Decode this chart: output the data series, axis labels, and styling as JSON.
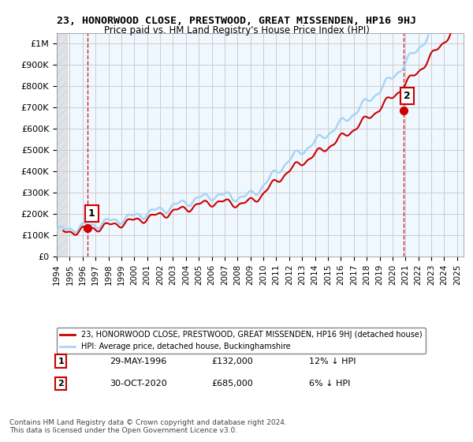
{
  "title": "23, HONORWOOD CLOSE, PRESTWOOD, GREAT MISSENDEN, HP16 9HJ",
  "subtitle": "Price paid vs. HM Land Registry's House Price Index (HPI)",
  "xlim_start": 1994.0,
  "xlim_end": 2025.5,
  "ylim_min": 0,
  "ylim_max": 1050000,
  "yticks": [
    0,
    100000,
    200000,
    300000,
    400000,
    500000,
    600000,
    700000,
    800000,
    900000,
    1000000
  ],
  "ytick_labels": [
    "£0",
    "£100K",
    "£200K",
    "£300K",
    "£400K",
    "£500K",
    "£600K",
    "£700K",
    "£800K",
    "£900K",
    "£1M"
  ],
  "xtick_years": [
    1994,
    1995,
    1996,
    1997,
    1998,
    1999,
    2000,
    2001,
    2002,
    2003,
    2004,
    2005,
    2006,
    2007,
    2008,
    2009,
    2010,
    2011,
    2012,
    2013,
    2014,
    2015,
    2016,
    2017,
    2018,
    2019,
    2020,
    2021,
    2022,
    2023,
    2024,
    2025
  ],
  "sale1_x": 1996.41,
  "sale1_y": 132000,
  "sale1_label": "1",
  "sale1_date": "29-MAY-1996",
  "sale1_price": "£132,000",
  "sale1_hpi": "12% ↓ HPI",
  "sale2_x": 2020.83,
  "sale2_y": 685000,
  "sale2_label": "2",
  "sale2_date": "30-OCT-2020",
  "sale2_price": "£685,000",
  "sale2_hpi": "6% ↓ HPI",
  "hpi_color": "#aad4f5",
  "sold_color": "#cc0000",
  "vline_color": "#cc0000",
  "legend1_text": "23, HONORWOOD CLOSE, PRESTWOOD, GREAT MISSENDEN, HP16 9HJ (detached house)",
  "legend2_text": "HPI: Average price, detached house, Buckinghamshire",
  "footer": "Contains HM Land Registry data © Crown copyright and database right 2024.\nThis data is licensed under the Open Government Licence v3.0.",
  "bg_hatch_color": "#e8e8e8",
  "plot_bg": "#f0f8ff",
  "grid_color": "#cccccc"
}
